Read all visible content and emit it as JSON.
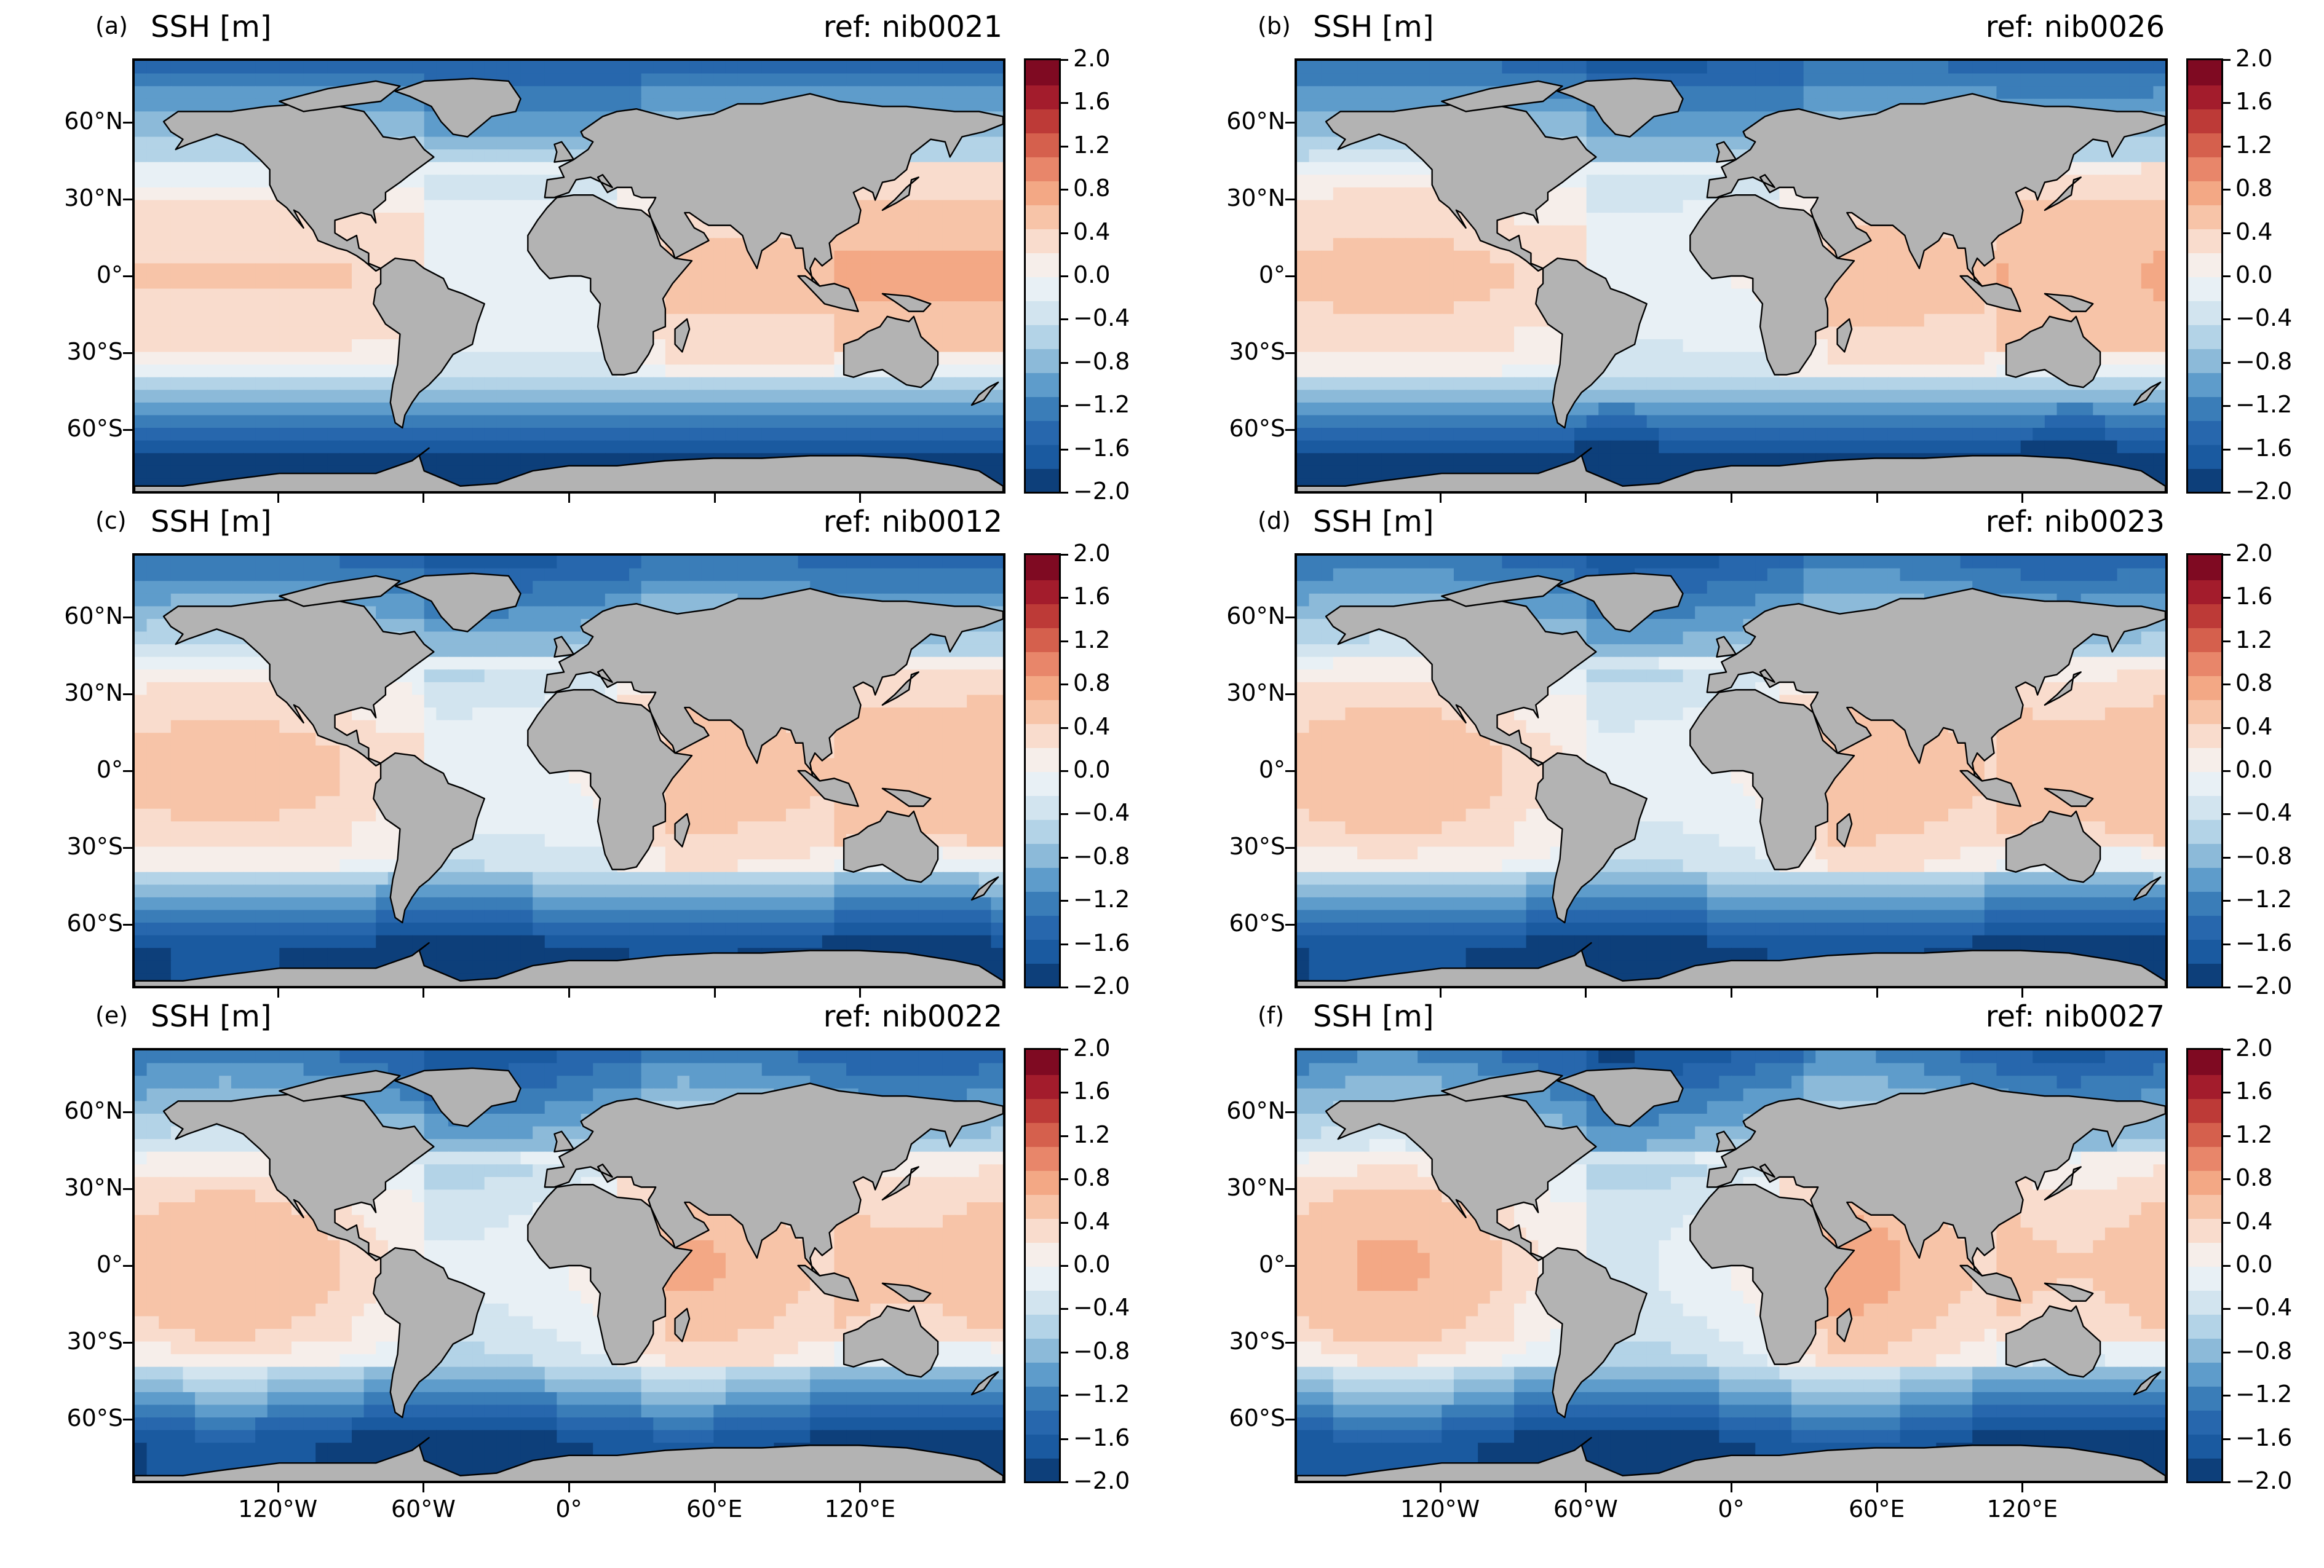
{
  "figure": {
    "colors": {
      "land": "#b3b3b3",
      "coastline": "#000000",
      "ice": "#ffffff",
      "colormap": "RdBu_r",
      "scale": [
        "#0d3f7a",
        "#1a5aa0",
        "#2767ad",
        "#3a7db8",
        "#5e9ccb",
        "#8cbad9",
        "#b3d3e7",
        "#d2e4ef",
        "#e8f0f5",
        "#f6eeea",
        "#f9dccd",
        "#f7c4a8",
        "#f3a885",
        "#e8866a",
        "#d5604d",
        "#bd3a37",
        "#a31c2c",
        "#7f0a22"
      ]
    },
    "colorbar": {
      "ticks": [
        "2.0",
        "1.6",
        "1.2",
        "0.8",
        "0.4",
        "0.0",
        "−0.4",
        "−0.8",
        "−1.2",
        "−1.6",
        "−2.0"
      ],
      "range": [
        -2.0,
        2.0
      ],
      "levels": 20
    },
    "lat_ticks": [
      "60°N",
      "30°N",
      "0°",
      "30°S",
      "60°S"
    ],
    "lon_ticks": [
      "120°W",
      "60°W",
      "0°",
      "60°E",
      "120°E"
    ],
    "panels": [
      {
        "letter": "(a)",
        "variable": "SSH [m]",
        "ref": "ref: nib0021"
      },
      {
        "letter": "(b)",
        "variable": "SSH [m]",
        "ref": "ref: nib0026"
      },
      {
        "letter": "(c)",
        "variable": "SSH [m]",
        "ref": "ref: nib0012"
      },
      {
        "letter": "(d)",
        "variable": "SSH [m]",
        "ref": "ref: nib0023"
      },
      {
        "letter": "(e)",
        "variable": "SSH [m]",
        "ref": "ref: nib0022"
      },
      {
        "letter": "(f)",
        "variable": "SSH [m]",
        "ref": "ref: nib0027"
      }
    ]
  }
}
